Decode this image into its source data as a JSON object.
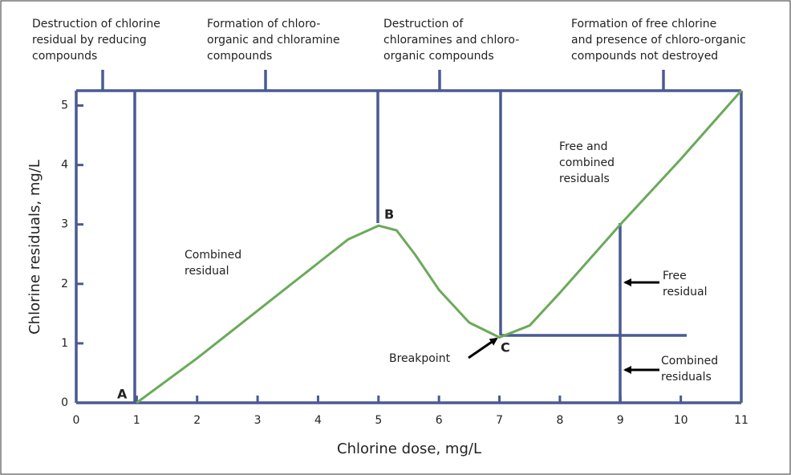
{
  "chart_data": {
    "type": "line",
    "x_label": "Chlorine dose, mg/L",
    "y_label": "Chlorine residuals, mg/L",
    "x": [
      1,
      2,
      3,
      4,
      4.5,
      5,
      5.3,
      5.6,
      6,
      6.5,
      7,
      7.5,
      8,
      9,
      10,
      11
    ],
    "series": [
      {
        "color": "#6aaa5a",
        "values": [
          0,
          0.75,
          1.55,
          2.35,
          2.75,
          2.98,
          2.9,
          2.5,
          1.9,
          1.35,
          1.1,
          1.3,
          1.85,
          3.0,
          4.1,
          5.25
        ]
      }
    ],
    "xlim": [
      0,
      11
    ],
    "xticks": [
      0,
      1,
      2,
      3,
      4,
      5,
      6,
      7,
      8,
      9,
      10,
      11
    ],
    "ylim": [
      0,
      5.25
    ],
    "yticks": [
      0,
      1,
      2,
      3,
      4,
      5
    ],
    "zones": [
      [
        "Destruction of chlorine",
        "residual by reducing",
        "compounds"
      ],
      [
        "Formation of chloro-",
        "organic and chloramine",
        "compounds"
      ],
      [
        "Destruction of",
        "chloramines and chloro-",
        "organic compounds"
      ],
      [
        "Formation of free chlorine",
        "and presence of chloro-organic",
        "compounds not destroyed"
      ]
    ],
    "annotations": {
      "combined_residual": [
        "Combined",
        "residual"
      ],
      "free_and_combined": [
        "Free and",
        "combined",
        "residuals"
      ],
      "free_residual": [
        "Free",
        "residual"
      ],
      "combined_residuals": [
        "Combined",
        "residuals"
      ],
      "breakpoint": "Breakpoint",
      "point_a": "A",
      "point_b": "B",
      "point_c": "C"
    }
  }
}
